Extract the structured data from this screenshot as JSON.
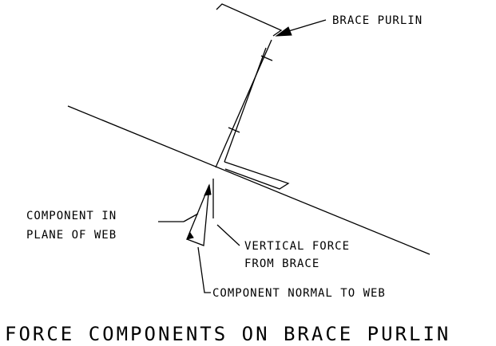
{
  "labels": {
    "brace_purlin": "BRACE PURLIN",
    "component_in_plane_line1": "COMPONENT IN",
    "component_in_plane_line2": "PLANE OF WEB",
    "vertical_force_line1": "VERTICAL FORCE",
    "vertical_force_line2": "FROM BRACE",
    "component_normal": "COMPONENT NORMAL TO WEB"
  },
  "title": "FORCE COMPONENTS ON BRACE PURLIN"
}
